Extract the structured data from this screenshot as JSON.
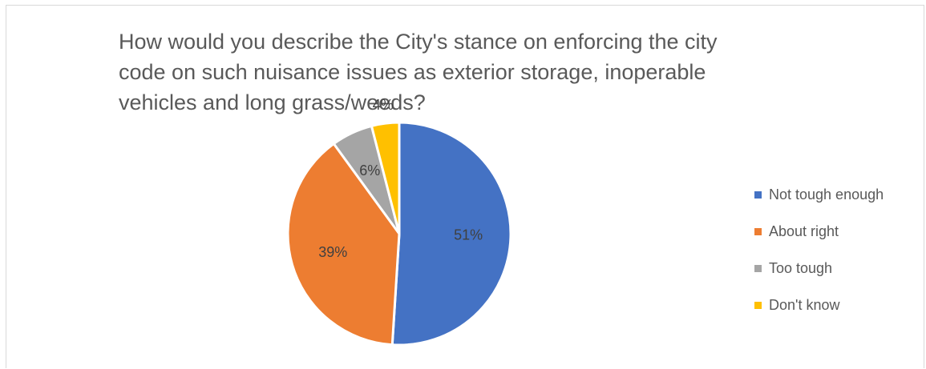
{
  "chart_data": {
    "type": "pie",
    "title": "How would you describe the City's stance on enforcing the city code on such nuisance issues as exterior storage, inoperable vehicles and long grass/weeds?",
    "categories": [
      "Not tough enough",
      "About right",
      "Too tough",
      "Don't know"
    ],
    "values": [
      51,
      39,
      6,
      4
    ],
    "data_labels": [
      "51%",
      "39%",
      "6%",
      "4%"
    ],
    "colors": [
      "#4472c4",
      "#ed7d31",
      "#a5a5a5",
      "#ffc000"
    ],
    "legend_position": "right"
  }
}
